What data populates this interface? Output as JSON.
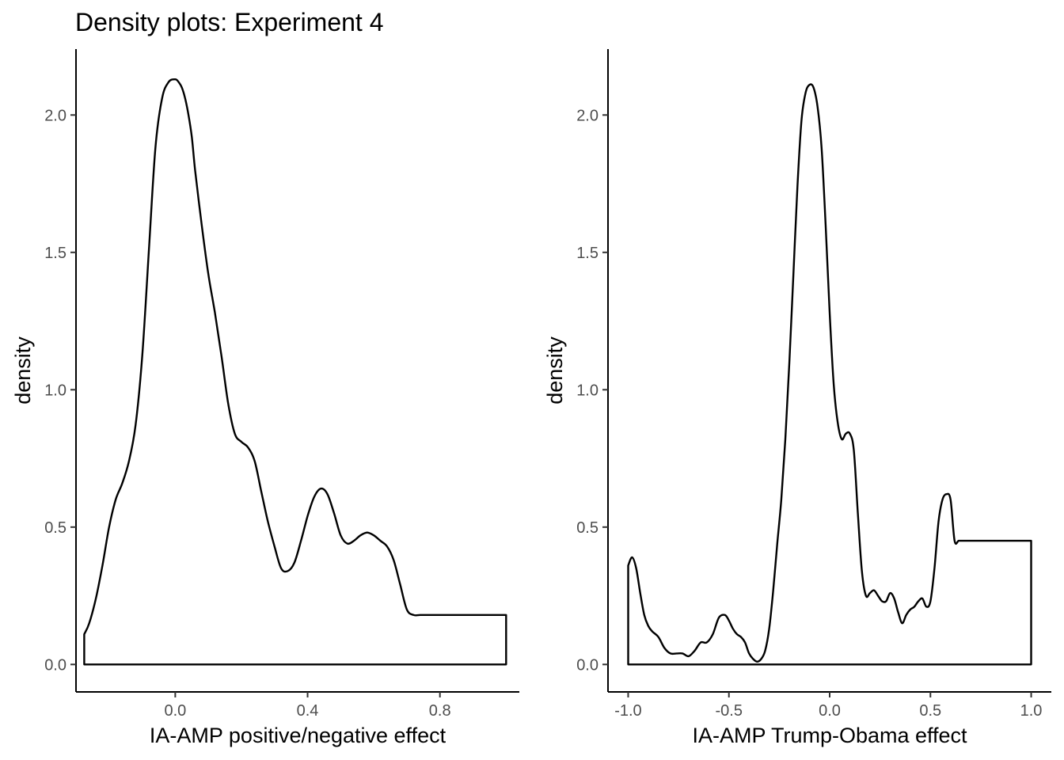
{
  "title": "Density plots: Experiment 4",
  "chart_data": [
    {
      "type": "area",
      "xlabel": "IA-AMP positive/negative effect",
      "ylabel": "density",
      "xlim": [
        -0.3,
        1.04
      ],
      "ylim": [
        -0.1,
        2.24
      ],
      "x_ticks": [
        0.0,
        0.4,
        0.8
      ],
      "x_tick_labels": [
        "0.0",
        "0.4",
        "0.8"
      ],
      "y_ticks": [
        0.0,
        0.5,
        1.0,
        1.5,
        2.0
      ],
      "y_tick_labels": [
        "0.0",
        "0.5",
        "1.0",
        "1.5",
        "2.0"
      ],
      "grid": false,
      "series": [
        {
          "x": [
            -0.275,
            -0.26,
            -0.24,
            -0.22,
            -0.2,
            -0.18,
            -0.16,
            -0.14,
            -0.12,
            -0.1,
            -0.08,
            -0.06,
            -0.04,
            -0.02,
            0.0,
            0.01,
            0.02,
            0.03,
            0.04,
            0.05,
            0.06,
            0.08,
            0.1,
            0.12,
            0.14,
            0.16,
            0.18,
            0.2,
            0.22,
            0.24,
            0.26,
            0.28,
            0.3,
            0.32,
            0.34,
            0.36,
            0.38,
            0.4,
            0.42,
            0.44,
            0.46,
            0.48,
            0.5,
            0.52,
            0.54,
            0.56,
            0.58,
            0.6,
            0.62,
            0.64,
            0.66,
            0.68,
            0.7,
            0.72,
            0.74,
            0.76,
            0.78,
            0.8,
            0.82,
            0.84,
            0.86,
            0.88,
            0.9,
            0.92,
            0.94,
            0.96,
            0.98,
            1.0
          ],
          "y": [
            0.11,
            0.15,
            0.24,
            0.36,
            0.5,
            0.6,
            0.66,
            0.74,
            0.87,
            1.12,
            1.5,
            1.88,
            2.06,
            2.12,
            2.13,
            2.12,
            2.1,
            2.06,
            2.0,
            1.92,
            1.8,
            1.6,
            1.42,
            1.28,
            1.12,
            0.95,
            0.84,
            0.81,
            0.79,
            0.74,
            0.63,
            0.52,
            0.43,
            0.35,
            0.34,
            0.37,
            0.45,
            0.54,
            0.61,
            0.64,
            0.62,
            0.55,
            0.47,
            0.44,
            0.45,
            0.47,
            0.48,
            0.47,
            0.45,
            0.43,
            0.38,
            0.29,
            0.2,
            0.18,
            0.18,
            0.18,
            0.18,
            0.18,
            0.18,
            0.18,
            0.18,
            0.18,
            0.18,
            0.18,
            0.18,
            0.18,
            0.18,
            0.18
          ]
        }
      ]
    },
    {
      "type": "area",
      "xlabel": "IA-AMP Trump-Obama effect",
      "ylabel": "density",
      "xlim": [
        -1.1,
        1.1
      ],
      "ylim": [
        -0.1,
        2.24
      ],
      "x_ticks": [
        -1.0,
        -0.5,
        0.0,
        0.5,
        1.0
      ],
      "x_tick_labels": [
        "-1.0",
        "-0.5",
        "0.0",
        "0.5",
        "1.0"
      ],
      "y_ticks": [
        0.0,
        0.5,
        1.0,
        1.5,
        2.0
      ],
      "y_tick_labels": [
        "0.0",
        "0.5",
        "1.0",
        "1.5",
        "2.0"
      ],
      "grid": false,
      "series": [
        {
          "x": [
            -1.0,
            -0.98,
            -0.96,
            -0.94,
            -0.92,
            -0.9,
            -0.88,
            -0.85,
            -0.82,
            -0.79,
            -0.76,
            -0.73,
            -0.7,
            -0.67,
            -0.64,
            -0.61,
            -0.58,
            -0.55,
            -0.52,
            -0.5,
            -0.48,
            -0.46,
            -0.44,
            -0.42,
            -0.4,
            -0.38,
            -0.36,
            -0.34,
            -0.32,
            -0.3,
            -0.28,
            -0.26,
            -0.24,
            -0.22,
            -0.2,
            -0.18,
            -0.16,
            -0.14,
            -0.12,
            -0.1,
            -0.08,
            -0.06,
            -0.04,
            -0.02,
            0.0,
            0.02,
            0.04,
            0.06,
            0.08,
            0.1,
            0.12,
            0.14,
            0.16,
            0.18,
            0.2,
            0.22,
            0.24,
            0.26,
            0.28,
            0.3,
            0.32,
            0.34,
            0.36,
            0.38,
            0.4,
            0.42,
            0.44,
            0.46,
            0.48,
            0.5,
            0.52,
            0.54,
            0.56,
            0.58,
            0.6,
            0.62,
            0.64,
            0.66,
            0.68,
            0.7,
            0.72,
            0.74,
            0.76,
            0.78,
            0.8,
            0.82,
            0.84,
            0.86,
            0.88,
            0.9,
            0.92,
            0.94,
            0.96,
            0.98,
            1.0
          ],
          "y": [
            0.36,
            0.39,
            0.35,
            0.26,
            0.18,
            0.14,
            0.12,
            0.1,
            0.06,
            0.04,
            0.04,
            0.04,
            0.03,
            0.05,
            0.08,
            0.08,
            0.11,
            0.17,
            0.18,
            0.16,
            0.13,
            0.11,
            0.1,
            0.08,
            0.04,
            0.02,
            0.01,
            0.02,
            0.05,
            0.13,
            0.27,
            0.44,
            0.6,
            0.82,
            1.1,
            1.42,
            1.74,
            1.98,
            2.08,
            2.11,
            2.1,
            2.03,
            1.88,
            1.6,
            1.28,
            1.02,
            0.88,
            0.82,
            0.84,
            0.84,
            0.78,
            0.55,
            0.34,
            0.25,
            0.26,
            0.27,
            0.25,
            0.23,
            0.23,
            0.26,
            0.24,
            0.19,
            0.15,
            0.18,
            0.2,
            0.21,
            0.23,
            0.24,
            0.21,
            0.23,
            0.35,
            0.52,
            0.6,
            0.62,
            0.6,
            0.45,
            0.45,
            0.45,
            0.45,
            0.45,
            0.45,
            0.45,
            0.45,
            0.45,
            0.45,
            0.45,
            0.45,
            0.45,
            0.45,
            0.45,
            0.45,
            0.45,
            0.45,
            0.45,
            0.45
          ]
        }
      ]
    }
  ]
}
